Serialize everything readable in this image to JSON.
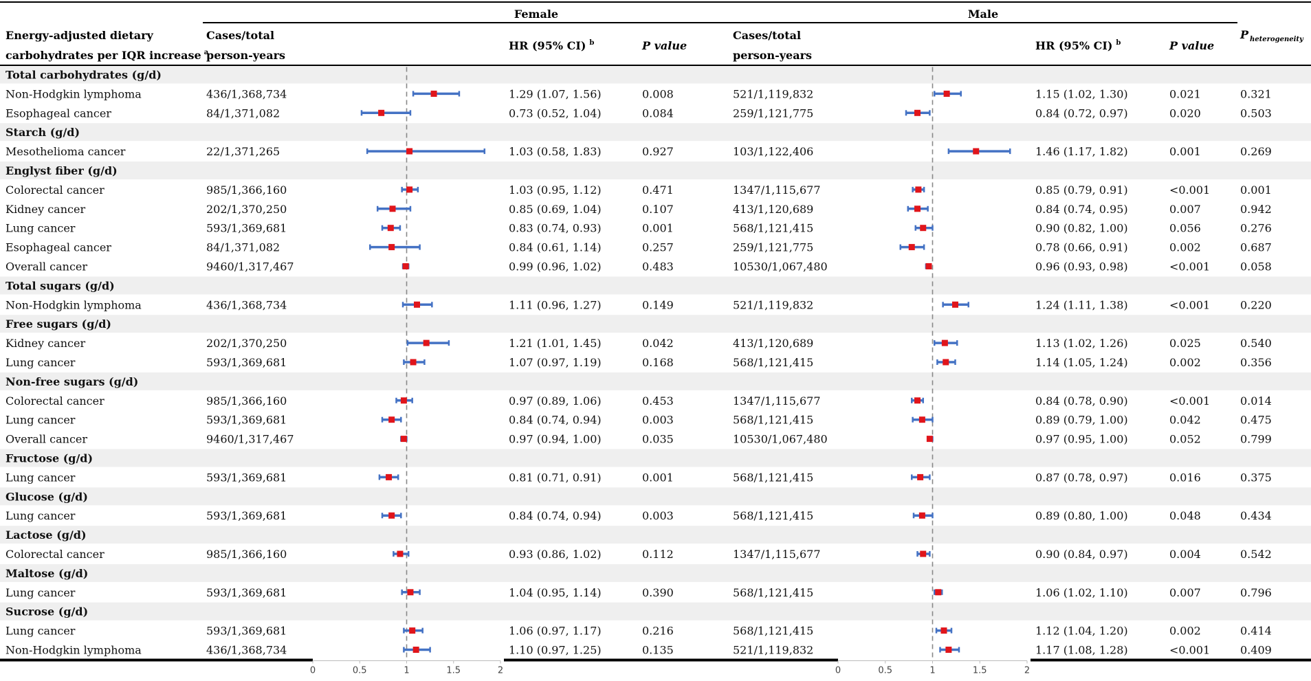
{
  "header": {
    "group_female": "Female",
    "group_male": "Male",
    "exposure_line1": "Energy-adjusted dietary",
    "exposure_line2": "carbohydrates per IQR increase",
    "exposure_sup": "a",
    "cases_line1": "Cases/total",
    "cases_line2": "person-years",
    "hr_label": "HR (95% CI)",
    "hr_sup": "b",
    "p_label": "P value",
    "phet_p": "P",
    "phet_sub": "heterogeneity"
  },
  "colors": {
    "band": "#efefef",
    "ci_line": "#4472c4",
    "point": "#e0151b",
    "ref_line": "#888888"
  },
  "chart_data": {
    "type": "forest",
    "reference_value": 1,
    "axis": {
      "ticks": [
        0,
        0.5,
        1,
        1.5,
        2
      ],
      "tick_labels": [
        "0",
        "0.5",
        "1",
        "1.5",
        "2"
      ],
      "range": [
        0,
        2
      ]
    },
    "rows": [
      {
        "type": "section",
        "label": "Total carbohydrates (g/d)"
      },
      {
        "type": "data",
        "outcome": "Non-Hodgkin lymphoma",
        "f_cases": "436/1,368,734",
        "f_hr": 1.29,
        "f_lo": 1.07,
        "f_hi": 1.56,
        "f_hr_text": "1.29 (1.07, 1.56)",
        "f_p": "0.008",
        "m_cases": "521/1,119,832",
        "m_hr": 1.15,
        "m_lo": 1.02,
        "m_hi": 1.3,
        "m_hr_text": "1.15 (1.02, 1.30)",
        "m_p": "0.021",
        "p_het": "0.321"
      },
      {
        "type": "data",
        "outcome": "Esophageal cancer",
        "f_cases": "84/1,371,082",
        "f_hr": 0.73,
        "f_lo": 0.52,
        "f_hi": 1.04,
        "f_hr_text": "0.73 (0.52, 1.04)",
        "f_p": "0.084",
        "m_cases": "259/1,121,775",
        "m_hr": 0.84,
        "m_lo": 0.72,
        "m_hi": 0.97,
        "m_hr_text": "0.84 (0.72, 0.97)",
        "m_p": "0.020",
        "p_het": "0.503"
      },
      {
        "type": "section",
        "label": "Starch (g/d)"
      },
      {
        "type": "data",
        "outcome": "Mesothelioma cancer",
        "f_cases": "22/1,371,265",
        "f_hr": 1.03,
        "f_lo": 0.58,
        "f_hi": 1.83,
        "f_hr_text": "1.03 (0.58, 1.83)",
        "f_p": "0.927",
        "m_cases": "103/1,122,406",
        "m_hr": 1.46,
        "m_lo": 1.17,
        "m_hi": 1.82,
        "m_hr_text": "1.46 (1.17, 1.82)",
        "m_p": "0.001",
        "p_het": "0.269"
      },
      {
        "type": "section",
        "label": "Englyst fiber (g/d)"
      },
      {
        "type": "data",
        "outcome": "Colorectal cancer",
        "f_cases": "985/1,366,160",
        "f_hr": 1.03,
        "f_lo": 0.95,
        "f_hi": 1.12,
        "f_hr_text": "1.03 (0.95, 1.12)",
        "f_p": "0.471",
        "m_cases": "1347/1,115,677",
        "m_hr": 0.85,
        "m_lo": 0.79,
        "m_hi": 0.91,
        "m_hr_text": "0.85 (0.79, 0.91)",
        "m_p": "<0.001",
        "p_het": "0.001"
      },
      {
        "type": "data",
        "outcome": "Kidney cancer",
        "f_cases": "202/1,370,250",
        "f_hr": 0.85,
        "f_lo": 0.69,
        "f_hi": 1.04,
        "f_hr_text": "0.85 (0.69, 1.04)",
        "f_p": "0.107",
        "m_cases": "413/1,120,689",
        "m_hr": 0.84,
        "m_lo": 0.74,
        "m_hi": 0.95,
        "m_hr_text": "0.84 (0.74, 0.95)",
        "m_p": "0.007",
        "p_het": "0.942"
      },
      {
        "type": "data",
        "outcome": "Lung cancer",
        "f_cases": "593/1,369,681",
        "f_hr": 0.83,
        "f_lo": 0.74,
        "f_hi": 0.93,
        "f_hr_text": "0.83 (0.74, 0.93)",
        "f_p": "0.001",
        "m_cases": "568/1,121,415",
        "m_hr": 0.9,
        "m_lo": 0.82,
        "m_hi": 1.0,
        "m_hr_text": "0.90 (0.82, 1.00)",
        "m_p": "0.056",
        "p_het": "0.276"
      },
      {
        "type": "data",
        "outcome": "Esophageal cancer",
        "f_cases": "84/1,371,082",
        "f_hr": 0.84,
        "f_lo": 0.61,
        "f_hi": 1.14,
        "f_hr_text": "0.84 (0.61, 1.14)",
        "f_p": "0.257",
        "m_cases": "259/1,121,775",
        "m_hr": 0.78,
        "m_lo": 0.66,
        "m_hi": 0.91,
        "m_hr_text": "0.78 (0.66, 0.91)",
        "m_p": "0.002",
        "p_het": "0.687"
      },
      {
        "type": "data",
        "outcome": "Overall cancer",
        "f_cases": "9460/1,317,467",
        "f_hr": 0.99,
        "f_lo": 0.96,
        "f_hi": 1.02,
        "f_hr_text": "0.99 (0.96, 1.02)",
        "f_p": "0.483",
        "m_cases": "10530/1,067,480",
        "m_hr": 0.96,
        "m_lo": 0.93,
        "m_hi": 0.98,
        "m_hr_text": "0.96 (0.93, 0.98)",
        "m_p": "<0.001",
        "p_het": "0.058"
      },
      {
        "type": "section",
        "label": "Total sugars (g/d)"
      },
      {
        "type": "data",
        "outcome": "Non-Hodgkin lymphoma",
        "f_cases": "436/1,368,734",
        "f_hr": 1.11,
        "f_lo": 0.96,
        "f_hi": 1.27,
        "f_hr_text": "1.11 (0.96, 1.27)",
        "f_p": "0.149",
        "m_cases": "521/1,119,832",
        "m_hr": 1.24,
        "m_lo": 1.11,
        "m_hi": 1.38,
        "m_hr_text": "1.24 (1.11, 1.38)",
        "m_p": "<0.001",
        "p_het": "0.220"
      },
      {
        "type": "section",
        "label": "Free sugars (g/d)"
      },
      {
        "type": "data",
        "outcome": "Kidney cancer",
        "f_cases": "202/1,370,250",
        "f_hr": 1.21,
        "f_lo": 1.01,
        "f_hi": 1.45,
        "f_hr_text": "1.21 (1.01, 1.45)",
        "f_p": "0.042",
        "m_cases": "413/1,120,689",
        "m_hr": 1.13,
        "m_lo": 1.02,
        "m_hi": 1.26,
        "m_hr_text": "1.13 (1.02, 1.26)",
        "m_p": "0.025",
        "p_het": "0.540"
      },
      {
        "type": "data",
        "outcome": "Lung cancer",
        "f_cases": "593/1,369,681",
        "f_hr": 1.07,
        "f_lo": 0.97,
        "f_hi": 1.19,
        "f_hr_text": "1.07 (0.97, 1.19)",
        "f_p": "0.168",
        "m_cases": "568/1,121,415",
        "m_hr": 1.14,
        "m_lo": 1.05,
        "m_hi": 1.24,
        "m_hr_text": "1.14 (1.05, 1.24)",
        "m_p": "0.002",
        "p_het": "0.356"
      },
      {
        "type": "section",
        "label": "Non-free sugars (g/d)"
      },
      {
        "type": "data",
        "outcome": "Colorectal cancer",
        "f_cases": "985/1,366,160",
        "f_hr": 0.97,
        "f_lo": 0.89,
        "f_hi": 1.06,
        "f_hr_text": "0.97 (0.89, 1.06)",
        "f_p": "0.453",
        "m_cases": "1347/1,115,677",
        "m_hr": 0.84,
        "m_lo": 0.78,
        "m_hi": 0.9,
        "m_hr_text": "0.84 (0.78, 0.90)",
        "m_p": "<0.001",
        "p_het": "0.014"
      },
      {
        "type": "data",
        "outcome": "Lung cancer",
        "f_cases": "593/1,369,681",
        "f_hr": 0.84,
        "f_lo": 0.74,
        "f_hi": 0.94,
        "f_hr_text": "0.84 (0.74, 0.94)",
        "f_p": "0.003",
        "m_cases": "568/1,121,415",
        "m_hr": 0.89,
        "m_lo": 0.79,
        "m_hi": 1.0,
        "m_hr_text": "0.89 (0.79, 1.00)",
        "m_p": "0.042",
        "p_het": "0.475"
      },
      {
        "type": "data",
        "outcome": "Overall cancer",
        "f_cases": "9460/1,317,467",
        "f_hr": 0.97,
        "f_lo": 0.94,
        "f_hi": 1.0,
        "f_hr_text": "0.97 (0.94, 1.00)",
        "f_p": "0.035",
        "m_cases": "10530/1,067,480",
        "m_hr": 0.97,
        "m_lo": 0.95,
        "m_hi": 1.0,
        "m_hr_text": "0.97 (0.95, 1.00)",
        "m_p": "0.052",
        "p_het": "0.799"
      },
      {
        "type": "section",
        "label": "Fructose (g/d)"
      },
      {
        "type": "data",
        "outcome": "Lung cancer",
        "f_cases": "593/1,369,681",
        "f_hr": 0.81,
        "f_lo": 0.71,
        "f_hi": 0.91,
        "f_hr_text": "0.81 (0.71, 0.91)",
        "f_p": "0.001",
        "m_cases": "568/1,121,415",
        "m_hr": 0.87,
        "m_lo": 0.78,
        "m_hi": 0.97,
        "m_hr_text": "0.87 (0.78, 0.97)",
        "m_p": "0.016",
        "p_het": "0.375"
      },
      {
        "type": "section",
        "label": "Glucose (g/d)"
      },
      {
        "type": "data",
        "outcome": "Lung cancer",
        "f_cases": "593/1,369,681",
        "f_hr": 0.84,
        "f_lo": 0.74,
        "f_hi": 0.94,
        "f_hr_text": "0.84 (0.74, 0.94)",
        "f_p": "0.003",
        "m_cases": "568/1,121,415",
        "m_hr": 0.89,
        "m_lo": 0.8,
        "m_hi": 1.0,
        "m_hr_text": "0.89 (0.80, 1.00)",
        "m_p": "0.048",
        "p_het": "0.434"
      },
      {
        "type": "section",
        "label": "Lactose (g/d)"
      },
      {
        "type": "data",
        "outcome": "Colorectal cancer",
        "f_cases": "985/1,366,160",
        "f_hr": 0.93,
        "f_lo": 0.86,
        "f_hi": 1.02,
        "f_hr_text": "0.93 (0.86, 1.02)",
        "f_p": "0.112",
        "m_cases": "1347/1,115,677",
        "m_hr": 0.9,
        "m_lo": 0.84,
        "m_hi": 0.97,
        "m_hr_text": "0.90 (0.84, 0.97)",
        "m_p": "0.004",
        "p_het": "0.542"
      },
      {
        "type": "section",
        "label": "Maltose (g/d)"
      },
      {
        "type": "data",
        "outcome": "Lung cancer",
        "f_cases": "593/1,369,681",
        "f_hr": 1.04,
        "f_lo": 0.95,
        "f_hi": 1.14,
        "f_hr_text": "1.04 (0.95, 1.14)",
        "f_p": "0.390",
        "m_cases": "568/1,121,415",
        "m_hr": 1.06,
        "m_lo": 1.02,
        "m_hi": 1.1,
        "m_hr_text": "1.06 (1.02, 1.10)",
        "m_p": "0.007",
        "p_het": "0.796"
      },
      {
        "type": "section",
        "label": "Sucrose (g/d)"
      },
      {
        "type": "data",
        "outcome": "Lung cancer",
        "f_cases": "593/1,369,681",
        "f_hr": 1.06,
        "f_lo": 0.97,
        "f_hi": 1.17,
        "f_hr_text": "1.06 (0.97, 1.17)",
        "f_p": "0.216",
        "m_cases": "568/1,121,415",
        "m_hr": 1.12,
        "m_lo": 1.04,
        "m_hi": 1.2,
        "m_hr_text": "1.12 (1.04, 1.20)",
        "m_p": "0.002",
        "p_het": "0.414"
      },
      {
        "type": "data",
        "outcome": "Non-Hodgkin lymphoma",
        "f_cases": "436/1,368,734",
        "f_hr": 1.1,
        "f_lo": 0.97,
        "f_hi": 1.25,
        "f_hr_text": "1.10 (0.97, 1.25)",
        "f_p": "0.135",
        "m_cases": "521/1,119,832",
        "m_hr": 1.17,
        "m_lo": 1.08,
        "m_hi": 1.28,
        "m_hr_text": "1.17 (1.08, 1.28)",
        "m_p": "<0.001",
        "p_het": "0.409"
      }
    ]
  }
}
